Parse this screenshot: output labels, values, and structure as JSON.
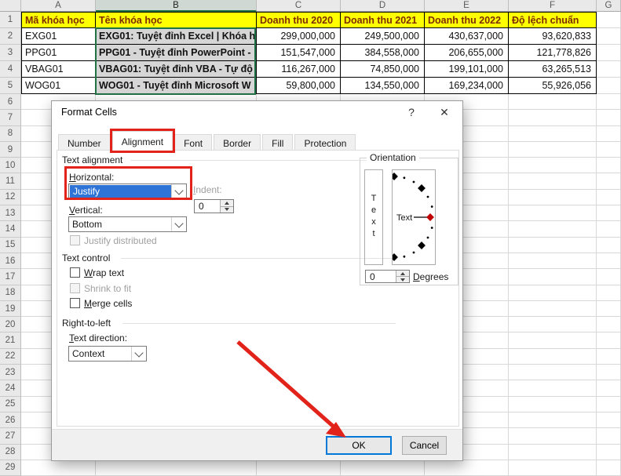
{
  "colors": {
    "accent_blue": "#2E74D6",
    "annotation_red": "#E2231A",
    "excel_green": "#217346",
    "header_fill": "#FFFF00",
    "header_text": "#7F2B00",
    "selection_fill": "#D6D6D6"
  },
  "spreadsheet": {
    "column_letters": [
      "A",
      "B",
      "C",
      "D",
      "E",
      "F",
      "G"
    ],
    "selected_column": "B",
    "row_count": 29,
    "header_row": [
      "Mã khóa học",
      "Tên khóa học",
      "Doanh thu 2020",
      "Doanh thu 2021",
      "Doanh thu 2022",
      "Độ lệch chuẩn"
    ],
    "data_rows": [
      [
        "EXG01",
        "EXG01: Tuyệt đỉnh Excel | Khóa h",
        "299,000,000",
        "249,500,000",
        "430,637,000",
        "93,620,833"
      ],
      [
        "PPG01",
        "PPG01 - Tuyệt đỉnh PowerPoint -",
        "151,547,000",
        "384,558,000",
        "206,655,000",
        "121,778,826"
      ],
      [
        "VBAG01",
        "VBAG01: Tuyệt đỉnh VBA - Tự độ",
        "116,267,000",
        "74,850,000",
        "199,101,000",
        "63,265,513"
      ],
      [
        "WOG01",
        "WOG01 - Tuyệt đỉnh Microsoft W",
        "59,800,000",
        "134,550,000",
        "169,234,000",
        "55,926,056"
      ]
    ]
  },
  "dialog": {
    "title": "Format Cells",
    "help_icon": "?",
    "close_icon": "✕",
    "tabs": [
      "Number",
      "Alignment",
      "Font",
      "Border",
      "Fill",
      "Protection"
    ],
    "selected_tab": "Alignment",
    "text_alignment": {
      "section_label": "Text alignment",
      "horizontal_label": "Horizontal:",
      "horizontal_value": "Justify",
      "indent_label": "Indent:",
      "indent_value": "0",
      "vertical_label": "Vertical:",
      "vertical_value": "Bottom",
      "justify_distributed_label": "Justify distributed"
    },
    "text_control": {
      "section_label": "Text control",
      "wrap_text_label": "Wrap text",
      "shrink_to_fit_label": "Shrink to fit",
      "merge_cells_label": "Merge cells"
    },
    "right_to_left": {
      "section_label": "Right-to-left",
      "text_direction_label": "Text direction:",
      "text_direction_value": "Context"
    },
    "orientation": {
      "section_label": "Orientation",
      "vertical_text_sample": "Text",
      "dial_text_sample": "Text",
      "degrees_value": "0",
      "degrees_label": "Degrees"
    },
    "buttons": {
      "ok": "OK",
      "cancel": "Cancel"
    }
  }
}
